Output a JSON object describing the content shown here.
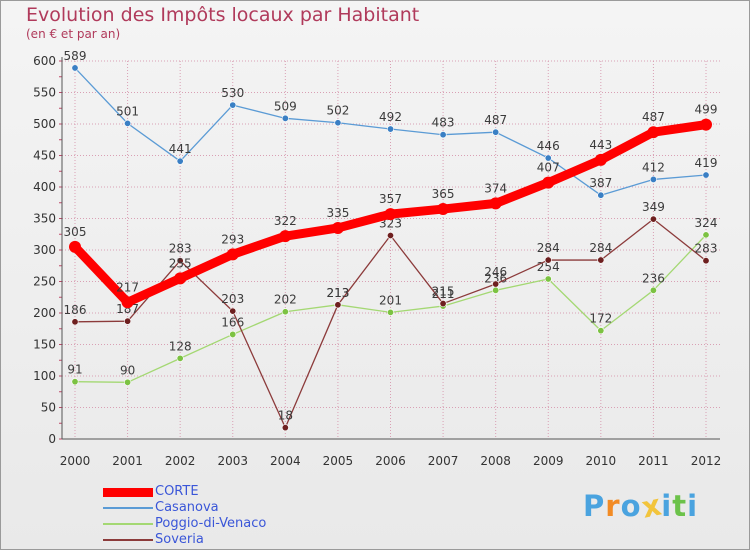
{
  "header": {
    "title": "Evolution des Impôts locaux par Habitant",
    "subtitle": "(en € et par an)"
  },
  "colors": {
    "title": "#b03a5b",
    "legend_text": "#3a56d8",
    "grid": "#d9a0b4",
    "axis_text": "#333333",
    "value_label": "#3b3b3b"
  },
  "chart_data": {
    "type": "line",
    "title": "Evolution des Impôts locaux par Habitant",
    "subtitle": "(en € et par an)",
    "xlabel": "",
    "ylabel": "",
    "ylim": [
      0,
      600
    ],
    "yticks": [
      0,
      50,
      100,
      150,
      200,
      250,
      300,
      350,
      400,
      450,
      500,
      550,
      600
    ],
    "grid": true,
    "legend_position": "bottom-left",
    "x": [
      "2000",
      "2001",
      "2002",
      "2003",
      "2004",
      "2005",
      "2006",
      "2007",
      "2008",
      "2009",
      "2010",
      "2011",
      "2012"
    ],
    "series": [
      {
        "name": "Casanova",
        "color": "#5b9bd5",
        "dot": "#3a7fc4",
        "values": [
          589,
          501,
          441,
          530,
          509,
          502,
          492,
          483,
          487,
          446,
          387,
          412,
          419
        ]
      },
      {
        "name": "Poggio-di-Venaco",
        "color": "#a4d873",
        "dot": "#7cc242",
        "values": [
          91,
          90,
          128,
          166,
          202,
          213,
          201,
          211,
          236,
          254,
          172,
          236,
          324
        ]
      },
      {
        "name": "Soveria",
        "color": "#8c3b3b",
        "dot": "#6e1f1f",
        "values": [
          186,
          187,
          283,
          203,
          18,
          213,
          323,
          215,
          246,
          284,
          284,
          349,
          283
        ]
      },
      {
        "name": "CORTE",
        "color": "#ff0000",
        "dot": "#ff0000",
        "values": [
          305,
          217,
          255,
          293,
          322,
          335,
          357,
          365,
          374,
          407,
          443,
          487,
          499
        ]
      }
    ]
  },
  "legend": {
    "items": [
      {
        "label": "CORTE",
        "color": "#ff0000",
        "thick": true
      },
      {
        "label": "Casanova",
        "color": "#5b9bd5",
        "thick": false
      },
      {
        "label": "Poggio-di-Venaco",
        "color": "#a4d873",
        "thick": false
      },
      {
        "label": "Soveria",
        "color": "#8c3b3b",
        "thick": false
      }
    ]
  },
  "logo": {
    "letters": [
      "P",
      "r",
      "o",
      "x",
      "i",
      "t",
      "i"
    ],
    "colors": [
      "#4aa3df",
      "#f28b24",
      "#4aa3df",
      "#f2c43c",
      "#4aa3df",
      "#6cc24a",
      "#4aa3df"
    ]
  }
}
